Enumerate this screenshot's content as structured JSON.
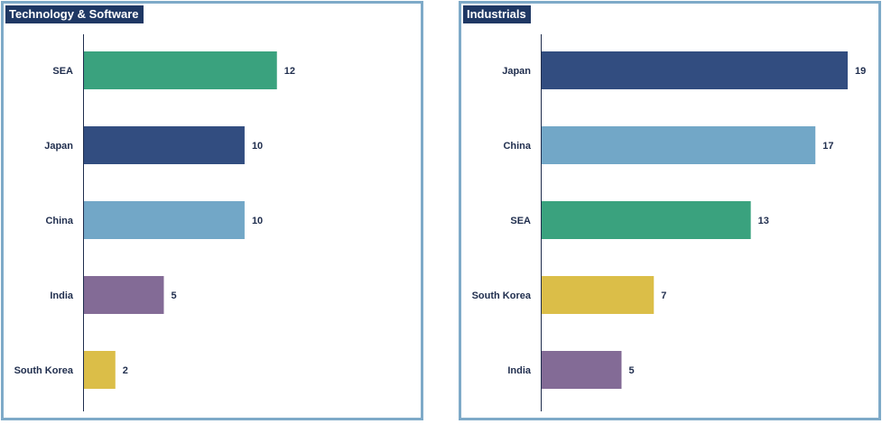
{
  "chart_data": [
    {
      "type": "bar",
      "orientation": "horizontal",
      "title": "Technology & Software",
      "categories": [
        "SEA",
        "Japan",
        "China",
        "India",
        "South Korea"
      ],
      "values": [
        12,
        10,
        10,
        5,
        2
      ],
      "colors": [
        "#3aa27e",
        "#324d80",
        "#72a7c7",
        "#836b96",
        "#dbbe48"
      ],
      "xlim": [
        0,
        19
      ],
      "grid": false
    },
    {
      "type": "bar",
      "orientation": "horizontal",
      "title": "Industrials",
      "categories": [
        "Japan",
        "China",
        "SEA",
        "South Korea",
        "India"
      ],
      "values": [
        19,
        17,
        13,
        7,
        5
      ],
      "colors": [
        "#324d80",
        "#72a7c7",
        "#3aa27e",
        "#dbbe48",
        "#836b96"
      ],
      "xlim": [
        0,
        19
      ],
      "grid": false
    }
  ]
}
